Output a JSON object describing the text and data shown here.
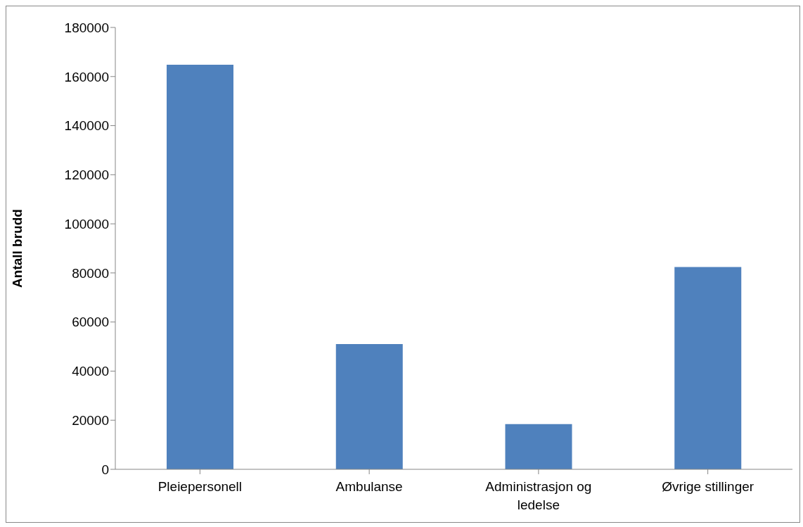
{
  "chart_data": {
    "type": "bar",
    "ylabel": "Antall brudd",
    "categories": [
      "Pleiepersonell",
      "Ambulanse",
      "Administrasjon og ledelse",
      "Øvrige stillinger"
    ],
    "values": [
      164800,
      51000,
      18400,
      82400
    ],
    "color": "#4f81bd",
    "ylim": [
      0,
      180000
    ],
    "yticks": [
      0,
      20000,
      40000,
      60000,
      80000,
      100000,
      120000,
      140000,
      160000,
      180000
    ],
    "grid": false
  }
}
